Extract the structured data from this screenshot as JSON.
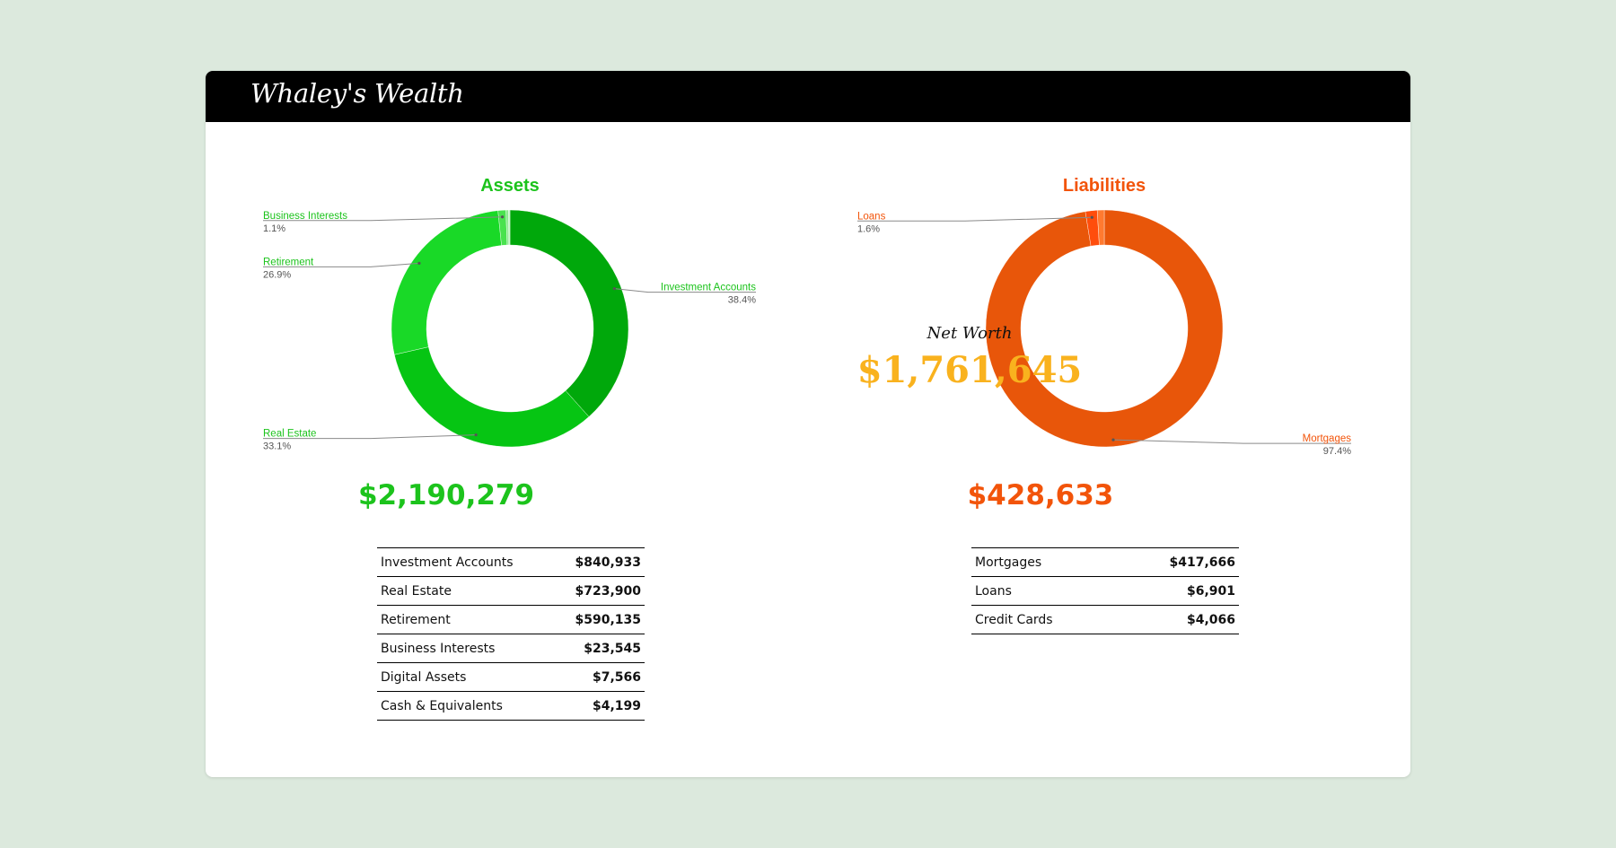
{
  "header": {
    "title": "Whaley's Wealth"
  },
  "colors": {
    "assets_text": "#1cc31c",
    "liabilities_text": "#f2540a",
    "net_worth": "#f9b21e"
  },
  "net_worth": {
    "label": "Net Worth",
    "value": "$1,761,645"
  },
  "assets": {
    "total": "$2,190,279",
    "rows": [
      {
        "name": "Investment Accounts",
        "value": "$840,933"
      },
      {
        "name": "Real Estate",
        "value": "$723,900"
      },
      {
        "name": "Retirement",
        "value": "$590,135"
      },
      {
        "name": "Business Interests",
        "value": "$23,545"
      },
      {
        "name": "Digital Assets",
        "value": "$7,566"
      },
      {
        "name": "Cash & Equivalents",
        "value": "$4,199"
      }
    ]
  },
  "liabilities": {
    "total": "$428,633",
    "rows": [
      {
        "name": "Mortgages",
        "value": "$417,666"
      },
      {
        "name": "Loans",
        "value": "$6,901"
      },
      {
        "name": "Credit Cards",
        "value": "$4,066"
      }
    ]
  },
  "chart_data": [
    {
      "type": "pie",
      "title": "Assets",
      "donut": true,
      "categories": [
        "Investment Accounts",
        "Real Estate",
        "Retirement",
        "Business Interests",
        "Digital Assets",
        "Cash & Equivalents"
      ],
      "values": [
        840933,
        723900,
        590135,
        23545,
        7566,
        4199
      ],
      "colors": [
        "#00a80b",
        "#06c513",
        "#19d927",
        "#49e24e",
        "#8ceb8f",
        "#bff3c1"
      ],
      "slice_labels": [
        {
          "category": "Investment Accounts",
          "percent": "38.4%",
          "side": "right"
        },
        {
          "category": "Real Estate",
          "percent": "33.1%",
          "side": "left"
        },
        {
          "category": "Retirement",
          "percent": "26.9%",
          "side": "left"
        },
        {
          "category": "Business Interests",
          "percent": "1.1%",
          "side": "left"
        }
      ]
    },
    {
      "type": "pie",
      "title": "Liabilities",
      "donut": true,
      "categories": [
        "Mortgages",
        "Loans",
        "Credit Cards"
      ],
      "values": [
        417666,
        6901,
        4066
      ],
      "colors": [
        "#e8560a",
        "#ff4d0c",
        "#ff7a30"
      ],
      "slice_labels": [
        {
          "category": "Mortgages",
          "percent": "97.4%",
          "side": "right"
        },
        {
          "category": "Loans",
          "percent": "1.6%",
          "side": "left"
        }
      ]
    }
  ]
}
